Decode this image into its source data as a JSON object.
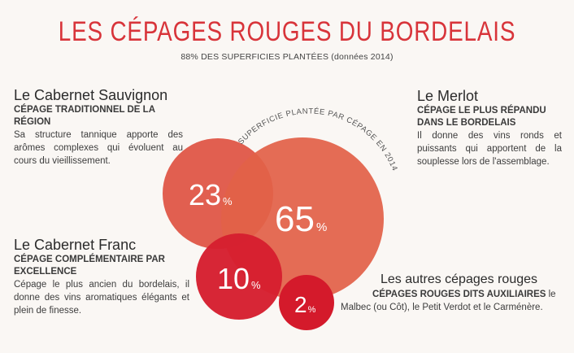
{
  "header": {
    "title": "LES CÉPAGES ROUGES DU BORDELAIS",
    "subtitle": "88% DES SUPERFICIES PLANTÉES (données 2014)"
  },
  "chart_label": "SUPERFICIE PLANTÉE PAR CÉPAGE EN 2014",
  "bubbles": [
    {
      "value": "23",
      "unit": "%"
    },
    {
      "value": "65",
      "unit": "%"
    },
    {
      "value": "10",
      "unit": "%"
    },
    {
      "value": "2",
      "unit": "%"
    }
  ],
  "colors": {
    "title_red": "#d8343a",
    "cabernet_sauvignon": "#e05a4a",
    "merlot": "#e26148",
    "cabernet_franc": "#d61f30",
    "others": "#d41a2b"
  },
  "cabernet_sauvignon": {
    "name": "Le Cabernet Sauvignon",
    "tag": "CÉPAGE TRADITIONNEL DE LA RÉGION",
    "desc": "Sa structure tannique apporte des arômes complexes qui évoluent au cours du vieillissement."
  },
  "merlot": {
    "name": "Le Merlot",
    "tag": "CÉPAGE LE PLUS RÉPANDU DANS LE BORDELAIS",
    "desc": "Il donne des vins ronds et puissants qui apportent de la souplesse lors de l'assemblage."
  },
  "cabernet_franc": {
    "name": "Le Cabernet Franc",
    "tag": "CÉPAGE COMPLÉMENTAIRE PAR EXCELLENCE",
    "desc": "Cépage le plus ancien du bordelais, il donne des vins aromatiques élégants et plein de finesse."
  },
  "others": {
    "name": "Les autres cépages rouges",
    "tag": "CÉPAGES ROUGES DITS AUXILIAIRES",
    "desc": "le Malbec (ou Côt), le Petit Verdot et le Carménère."
  }
}
